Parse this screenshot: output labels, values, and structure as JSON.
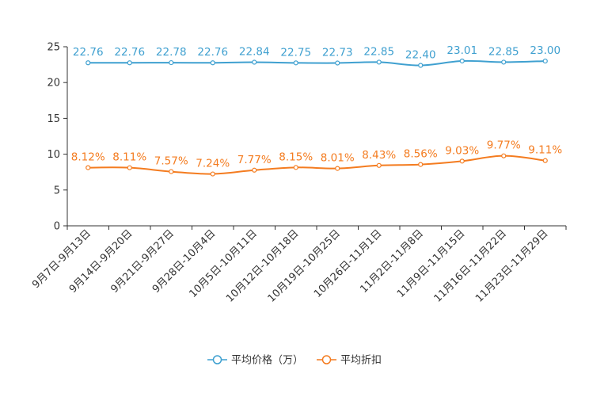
{
  "chart_data": {
    "type": "line",
    "categories": [
      "9月7日-9月13日",
      "9月14日-9月20日",
      "9月21日-9月27日",
      "9月28日-10月4日",
      "10月5日-10月11日",
      "10月12日-10月18日",
      "10月19日-10月25日",
      "10月26日-11月1日",
      "11月2日-11月8日",
      "11月9日-11月15日",
      "11月16日-11月22日",
      "11月23日-11月29日"
    ],
    "ylim": [
      0,
      25
    ],
    "yticks": [
      0,
      5,
      10,
      15,
      20,
      25
    ],
    "series": [
      {
        "name": "平均价格（万）",
        "color": "#3fa0d0",
        "values": [
          22.76,
          22.76,
          22.78,
          22.76,
          22.84,
          22.75,
          22.73,
          22.85,
          22.4,
          23.01,
          22.85,
          23.0
        ],
        "labels": [
          "22.76",
          "22.76",
          "22.78",
          "22.76",
          "22.84",
          "22.75",
          "22.73",
          "22.85",
          "22.40",
          "23.01",
          "22.85",
          "23.00"
        ]
      },
      {
        "name": "平均折扣",
        "color": "#f47c20",
        "values": [
          8.12,
          8.11,
          7.57,
          7.24,
          7.77,
          8.15,
          8.01,
          8.43,
          8.56,
          9.03,
          9.77,
          9.11
        ],
        "labels": [
          "8.12%",
          "8.11%",
          "7.57%",
          "7.24%",
          "7.77%",
          "8.15%",
          "8.01%",
          "8.43%",
          "8.56%",
          "9.03%",
          "9.77%",
          "9.11%"
        ]
      }
    ],
    "legend": {
      "position": "bottom-center"
    }
  }
}
